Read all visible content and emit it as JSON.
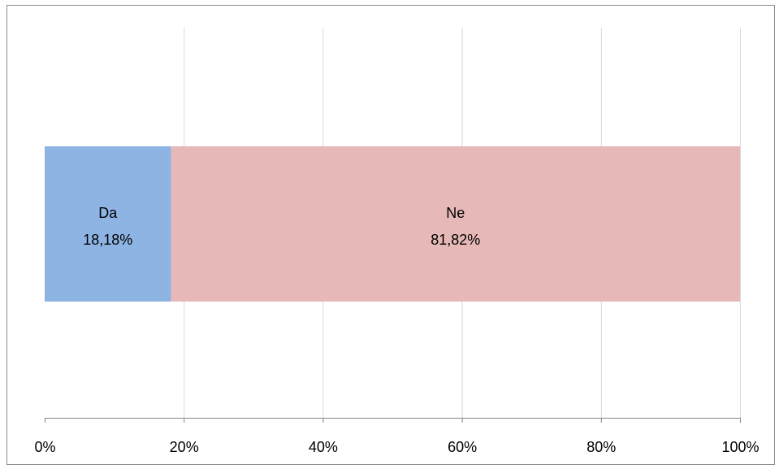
{
  "chart_data": {
    "type": "bar",
    "orientation": "horizontal-stacked-100",
    "categories": [
      ""
    ],
    "series": [
      {
        "name": "Da",
        "values": [
          18.18
        ],
        "label": "18,18%",
        "color": "#8eb4e3"
      },
      {
        "name": "Ne",
        "values": [
          81.82
        ],
        "label": "81,82%",
        "color": "#e6b8b7"
      }
    ],
    "xlim": [
      0,
      100
    ],
    "x_ticks": [
      0,
      20,
      40,
      60,
      80,
      100
    ],
    "x_tick_labels": [
      "0%",
      "20%",
      "40%",
      "60%",
      "80%",
      "100%"
    ],
    "title": "",
    "xlabel": "",
    "ylabel": "",
    "grid": true,
    "legend": "none"
  },
  "colors": {
    "gridline": "#d9d9d9",
    "axis": "#868686",
    "text": "#000000"
  }
}
